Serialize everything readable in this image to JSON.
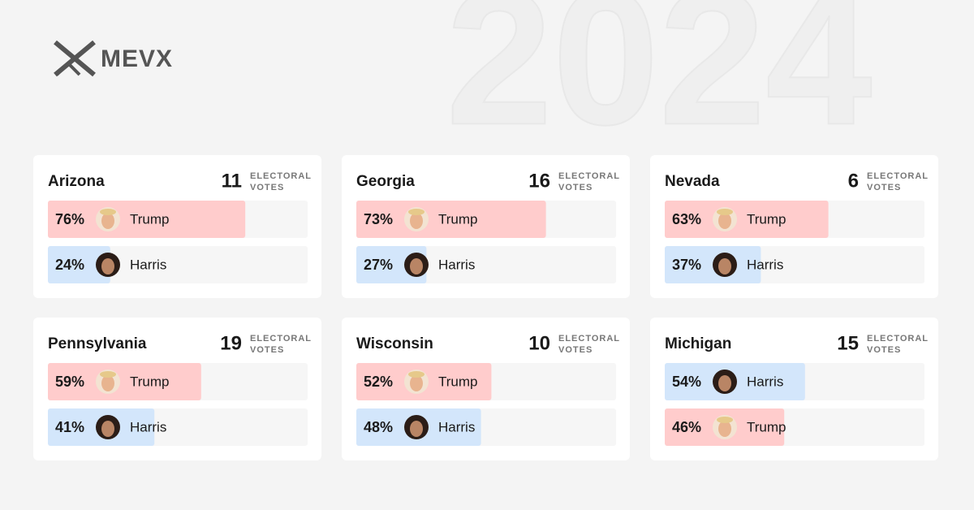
{
  "logo": "MEVX",
  "background_text": "2024",
  "electoral_label": [
    "ELECTORAL",
    "VOTES"
  ],
  "cards": [
    {
      "state": "Arizona",
      "votes": "11",
      "candidates": [
        {
          "name": "Trump",
          "value": 76,
          "label": "76%",
          "color": "#ffcccc"
        },
        {
          "name": "Harris",
          "value": 24,
          "label": "24%",
          "color": "#d3e6fb"
        }
      ]
    },
    {
      "state": "Georgia",
      "votes": "16",
      "candidates": [
        {
          "name": "Trump",
          "value": 73,
          "label": "73%",
          "color": "#ffcccc"
        },
        {
          "name": "Harris",
          "value": 27,
          "label": "27%",
          "color": "#d3e6fb"
        }
      ]
    },
    {
      "state": "Nevada",
      "votes": "6",
      "candidates": [
        {
          "name": "Trump",
          "value": 63,
          "label": "63%",
          "color": "#ffcccc"
        },
        {
          "name": "Harris",
          "value": 37,
          "label": "37%",
          "color": "#d3e6fb"
        }
      ]
    },
    {
      "state": "Pennsylvania",
      "votes": "19",
      "candidates": [
        {
          "name": "Trump",
          "value": 59,
          "label": "59%",
          "color": "#ffcccc"
        },
        {
          "name": "Harris",
          "value": 41,
          "label": "41%",
          "color": "#d3e6fb"
        }
      ]
    },
    {
      "state": "Wisconsin",
      "votes": "10",
      "candidates": [
        {
          "name": "Trump",
          "value": 52,
          "label": "52%",
          "color": "#ffcccc"
        },
        {
          "name": "Harris",
          "value": 48,
          "label": "48%",
          "color": "#d3e6fb"
        }
      ]
    },
    {
      "state": "Michigan",
      "votes": "15",
      "candidates": [
        {
          "name": "Harris",
          "value": 54,
          "label": "54%",
          "color": "#d3e6fb"
        },
        {
          "name": "Trump",
          "value": 46,
          "label": "46%",
          "color": "#ffcccc"
        }
      ]
    }
  ]
}
